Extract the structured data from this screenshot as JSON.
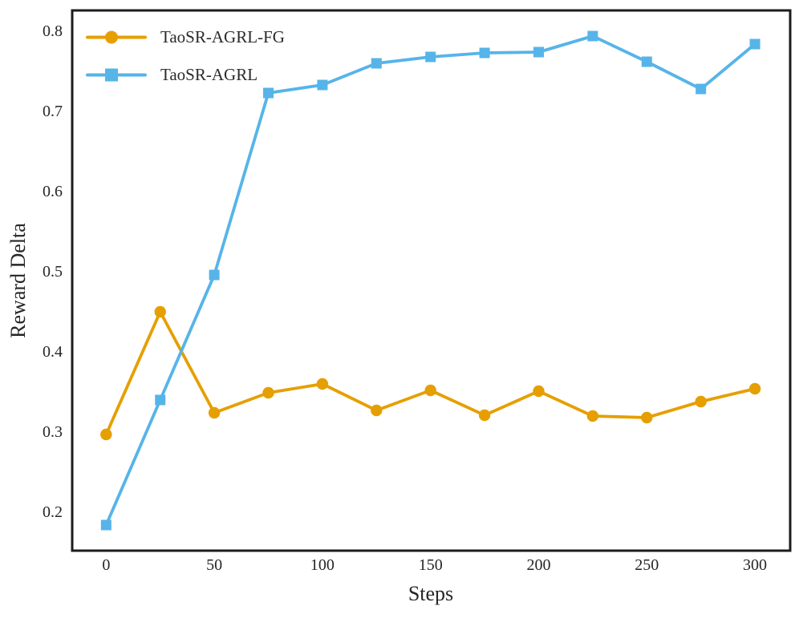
{
  "figure": {
    "background": "#ffffff",
    "frame_color": "#1c1c1c",
    "text_color": "#262626"
  },
  "chart_data": {
    "type": "line",
    "title": "",
    "xlabel": "Steps",
    "ylabel": "Reward Delta",
    "x": [
      0,
      25,
      50,
      75,
      100,
      125,
      150,
      175,
      200,
      225,
      250,
      275,
      300
    ],
    "series": [
      {
        "name": "TaoSR-AGRL-FG",
        "color": "#E69F00",
        "marker": "circle",
        "values": [
          0.296,
          0.449,
          0.323,
          0.348,
          0.359,
          0.326,
          0.351,
          0.32,
          0.35,
          0.319,
          0.317,
          0.337,
          0.353
        ]
      },
      {
        "name": "TaoSR-AGRL",
        "color": "#56B4E9",
        "marker": "square",
        "values": [
          0.183,
          0.339,
          0.495,
          0.722,
          0.732,
          0.759,
          0.767,
          0.772,
          0.773,
          0.793,
          0.761,
          0.727,
          0.783
        ]
      }
    ],
    "xticks": [
      0,
      50,
      100,
      150,
      200,
      250,
      300
    ],
    "yticks": [
      0.2,
      0.3,
      0.4,
      0.5,
      0.6,
      0.7,
      0.8
    ],
    "xlim": [
      -15.7,
      316.3
    ],
    "ylim": [
      0.151,
      0.825
    ],
    "grid": false,
    "legend_position": "upper-left"
  }
}
